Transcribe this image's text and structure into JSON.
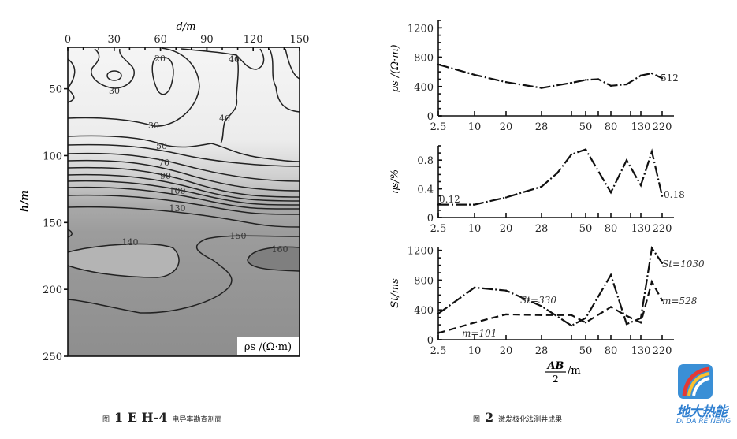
{
  "chart_data": [
    {
      "type": "heatmap",
      "subtype": "contour",
      "xlabel": "d/m",
      "ylabel": "h/m",
      "x_ticks": [
        "0",
        "30",
        "60",
        "90",
        "120",
        "150"
      ],
      "y_ticks": [
        "50",
        "100",
        "150",
        "200",
        "250"
      ],
      "xlim": [
        0,
        150
      ],
      "ylim": [
        250,
        19
      ],
      "legend_label": "ρs /(Ω·m)",
      "contour_labels": [
        "20",
        "30",
        "30",
        "40",
        "40",
        "30",
        "50",
        "70",
        "90",
        "100",
        "130",
        "140",
        "150",
        "160"
      ],
      "colors": {
        "low": "#f3f3f3",
        "high": "#8e8e8e"
      }
    },
    {
      "type": "line",
      "ylabel": "ρs /(Ω·m)",
      "x_tick_labels": [
        "2.5",
        "10",
        "20",
        "28",
        "50",
        "80",
        "130",
        "220"
      ],
      "y_ticks": [
        "0",
        "400",
        "800",
        "1200"
      ],
      "ylim": [
        0,
        1300
      ],
      "series": [
        {
          "style": "dash-dot",
          "x": [
            2.5,
            10,
            20,
            28,
            40,
            50,
            60,
            80,
            100,
            130,
            170,
            220
          ],
          "y": [
            700,
            560,
            460,
            380,
            450,
            490,
            500,
            410,
            430,
            550,
            580,
            512
          ]
        }
      ],
      "annotations": [
        "512"
      ]
    },
    {
      "type": "line",
      "ylabel": "ηs/%",
      "x_tick_labels": [
        "2.5",
        "10",
        "20",
        "28",
        "50",
        "80",
        "130",
        "220"
      ],
      "y_ticks": [
        "0",
        "0.4",
        "0.8"
      ],
      "ylim": [
        0,
        1.0
      ],
      "series": [
        {
          "style": "dash-dot",
          "x": [
            2.5,
            10,
            20,
            28,
            35,
            40,
            50,
            80,
            100,
            130,
            170,
            220
          ],
          "y": [
            0.18,
            0.18,
            0.28,
            0.43,
            0.62,
            0.88,
            0.95,
            0.35,
            0.8,
            0.45,
            0.92,
            0.3
          ]
        }
      ],
      "annotations": [
        "0.12",
        "0.18"
      ]
    },
    {
      "type": "line",
      "ylabel": "St/ms",
      "xlabel_num": "AB",
      "xlabel_den": "2",
      "xlabel_unit": "/m",
      "x_tick_labels": [
        "2.5",
        "10",
        "20",
        "28",
        "50",
        "80",
        "130",
        "220"
      ],
      "y_ticks": [
        "0",
        "400",
        "800",
        "1200"
      ],
      "ylim": [
        0,
        1250
      ],
      "series": [
        {
          "style": "dash-dot",
          "x": [
            2.5,
            10,
            20,
            28,
            40,
            50,
            80,
            100,
            130,
            170,
            220
          ],
          "y": [
            350,
            700,
            660,
            450,
            190,
            290,
            870,
            210,
            290,
            1230,
            1030
          ]
        },
        {
          "style": "dashed",
          "x": [
            2.5,
            10,
            20,
            28,
            40,
            50,
            80,
            100,
            130,
            170,
            220
          ],
          "y": [
            90,
            230,
            340,
            330,
            330,
            230,
            440,
            320,
            230,
            780,
            528
          ]
        }
      ],
      "annotations": [
        "St=1030",
        "m=528",
        "St=330",
        "m=101"
      ]
    }
  ],
  "captions": {
    "fig1_prefix": "图",
    "fig1_num": "1 E  H-4",
    "fig1_text": "电导率勘查剖面",
    "fig2_prefix": "图",
    "fig2_num": "2",
    "fig2_text": "激发极化法测井成果"
  },
  "logo": {
    "cn": "地大热能",
    "en": "DI DA RE NENG"
  }
}
